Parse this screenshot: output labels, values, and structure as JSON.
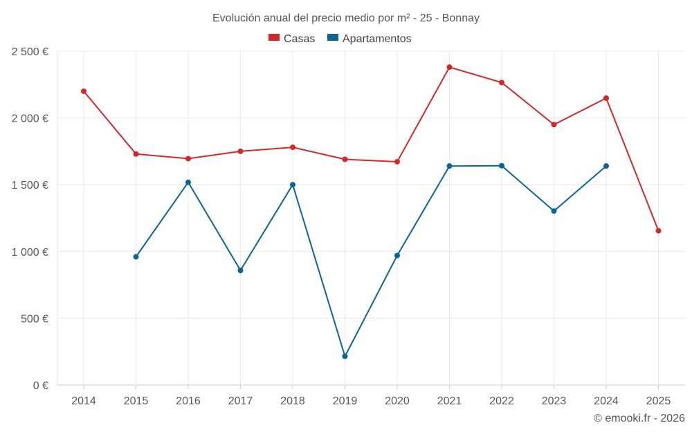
{
  "chart_data": {
    "type": "line",
    "title": "Evolución anual del precio medio por m² - 25 - Bonnay",
    "categories": [
      "2014",
      "2015",
      "2016",
      "2017",
      "2018",
      "2019",
      "2020",
      "2021",
      "2022",
      "2023",
      "2024",
      "2025"
    ],
    "series": [
      {
        "name": "Casas",
        "color": "#d62728",
        "values": [
          2200,
          1730,
          1695,
          1750,
          1780,
          1690,
          1672,
          2380,
          2265,
          1950,
          2148,
          1155
        ]
      },
      {
        "name": "Apartamentos",
        "color": "#0a6496",
        "values": [
          null,
          960,
          1518,
          858,
          1500,
          215,
          970,
          1640,
          1642,
          1303,
          1640,
          null
        ]
      }
    ],
    "y_ticks": [
      0,
      500,
      1000,
      1500,
      2000,
      2500
    ],
    "y_tick_labels": [
      "0 €",
      "500 €",
      "1 000 €",
      "1 500 €",
      "2 000 €",
      "2 500 €"
    ],
    "ylim": [
      0,
      2500
    ],
    "xlabel": "",
    "ylabel": "",
    "grid": true,
    "legend_position": "top-center"
  },
  "credit": "© emooki.fr - 2026"
}
